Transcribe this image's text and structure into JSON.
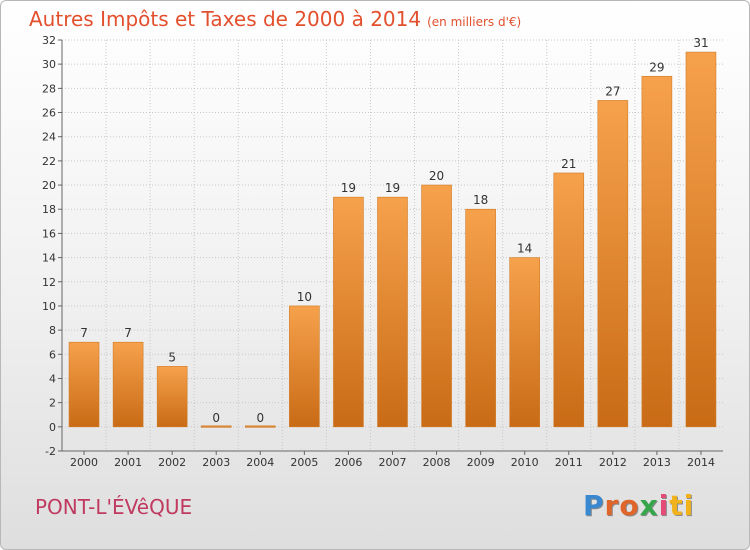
{
  "title": "Autres Impôts et Taxes de 2000 à 2014",
  "title_unit": "(en milliers d'€)",
  "commune": "PONT-L'ÉVêQUE",
  "logo": {
    "text": "Proxiti",
    "letters": [
      "P",
      "ro",
      "x",
      "i",
      "ti"
    ]
  },
  "colors": {
    "title": "#e2502d",
    "commune": "#c03a60",
    "bar_top": "#f6a14c",
    "bar_bottom": "#c96b16",
    "bar_stroke": "#d07a24"
  },
  "chart_data": {
    "type": "bar",
    "categories": [
      "2000",
      "2001",
      "2002",
      "2003",
      "2004",
      "2005",
      "2006",
      "2007",
      "2008",
      "2009",
      "2010",
      "2011",
      "2012",
      "2013",
      "2014"
    ],
    "values": [
      7,
      7,
      5,
      0,
      0,
      10,
      19,
      19,
      20,
      18,
      14,
      21,
      27,
      29,
      31
    ],
    "data_labels": [
      "7",
      "7",
      "5",
      "0",
      "0",
      "10",
      "19",
      "19",
      "20",
      "18",
      "14",
      "21",
      "27",
      "29",
      "31"
    ],
    "y_ticks": [
      -2,
      0,
      2,
      4,
      6,
      8,
      10,
      12,
      14,
      16,
      18,
      20,
      22,
      24,
      26,
      28,
      30,
      32
    ],
    "ylim": [
      -2,
      32
    ],
    "grid": true,
    "legend": "none"
  }
}
